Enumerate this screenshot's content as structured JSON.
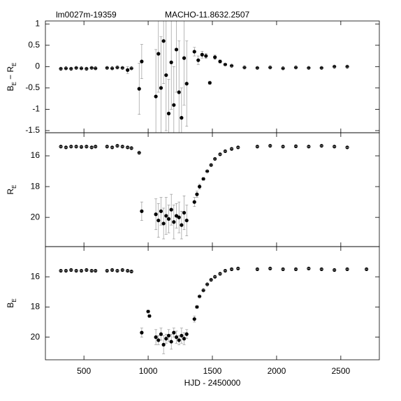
{
  "chart_data": [
    {
      "type": "scatter",
      "subtitle": "lm0027m-19359",
      "title": "MACHO-11.8632.2507",
      "ylabel": [
        "B",
        "E",
        " − ",
        "R",
        "E"
      ],
      "ylabel_sub": [
        false,
        true,
        false,
        false,
        true
      ],
      "xlim": [
        200,
        2800
      ],
      "ylim": [
        -1.55,
        1.07
      ],
      "yticks": [
        1,
        0.5,
        0,
        -0.5,
        -1,
        -1.5
      ],
      "x": [
        320,
        360,
        400,
        440,
        480,
        520,
        560,
        590,
        680,
        720,
        760,
        800,
        840,
        870,
        930,
        950,
        1060,
        1080,
        1100,
        1120,
        1140,
        1160,
        1180,
        1200,
        1220,
        1240,
        1260,
        1280,
        1300,
        1360,
        1390,
        1420,
        1450,
        1480,
        1520,
        1560,
        1600,
        1650,
        1750,
        1850,
        1950,
        2050,
        2150,
        2250,
        2350,
        2450,
        2550
      ],
      "values": [
        -0.05,
        -0.04,
        -0.05,
        -0.03,
        -0.04,
        -0.05,
        -0.03,
        -0.04,
        -0.03,
        -0.04,
        -0.02,
        -0.03,
        -0.08,
        -0.04,
        -0.52,
        0.12,
        -0.7,
        0.3,
        -0.5,
        0.6,
        -0.2,
        -1.1,
        0.1,
        -0.9,
        0.4,
        -0.6,
        -1.2,
        0.2,
        -0.4,
        0.35,
        0.15,
        0.28,
        0.25,
        -0.38,
        0.22,
        0.12,
        0.05,
        0.02,
        -0.02,
        -0.03,
        -0.02,
        -0.04,
        -0.02,
        -0.03,
        -0.03,
        0.0,
        0.0
      ],
      "errors": [
        0.02,
        0.02,
        0.02,
        0.02,
        0.02,
        0.02,
        0.02,
        0.02,
        0.02,
        0.02,
        0.02,
        0.02,
        0.08,
        0.02,
        0.6,
        0.4,
        1.1,
        0.9,
        1.2,
        1.0,
        1.3,
        0.8,
        1.1,
        0.9,
        1.0,
        1.2,
        0.7,
        1.1,
        1.0,
        0.1,
        0.1,
        0.08,
        0.06,
        0.04,
        0.05,
        0.04,
        0.03,
        0.02,
        0.02,
        0.02,
        0.02,
        0.02,
        0.02,
        0.02,
        0.02,
        0.02,
        0.02
      ]
    },
    {
      "type": "scatter",
      "ylabel": [
        "R",
        "E"
      ],
      "ylabel_sub": [
        false,
        true
      ],
      "xlim": [
        200,
        2800
      ],
      "ylim": [
        21.9,
        14.5
      ],
      "yticks": [
        16,
        18,
        20
      ],
      "x": [
        320,
        360,
        400,
        440,
        480,
        520,
        560,
        590,
        680,
        720,
        760,
        800,
        840,
        870,
        930,
        950,
        1060,
        1080,
        1100,
        1120,
        1140,
        1160,
        1180,
        1200,
        1220,
        1240,
        1260,
        1280,
        1300,
        1360,
        1380,
        1400,
        1430,
        1460,
        1490,
        1520,
        1560,
        1600,
        1650,
        1700,
        1850,
        1950,
        2050,
        2150,
        2250,
        2350,
        2450,
        2550
      ],
      "values": [
        15.4,
        15.45,
        15.4,
        15.4,
        15.42,
        15.4,
        15.45,
        15.4,
        15.4,
        15.45,
        15.35,
        15.4,
        15.45,
        15.5,
        15.8,
        19.6,
        19.8,
        20.2,
        19.6,
        20.4,
        19.9,
        20.1,
        19.5,
        20.3,
        19.9,
        20.0,
        20.5,
        19.7,
        20.2,
        19.0,
        18.5,
        18.0,
        17.5,
        17.0,
        16.6,
        16.2,
        15.9,
        15.7,
        15.55,
        15.45,
        15.4,
        15.35,
        15.4,
        15.38,
        15.4,
        15.35,
        15.4,
        15.45
      ],
      "errors": [
        0.02,
        0.02,
        0.02,
        0.02,
        0.02,
        0.02,
        0.02,
        0.02,
        0.02,
        0.02,
        0.02,
        0.02,
        0.02,
        0.02,
        0.05,
        0.6,
        1.0,
        1.1,
        0.9,
        1.0,
        1.2,
        0.9,
        1.0,
        1.1,
        0.8,
        1.0,
        0.9,
        1.1,
        1.0,
        0.3,
        0.2,
        0.15,
        0.1,
        0.08,
        0.05,
        0.04,
        0.03,
        0.02,
        0.02,
        0.02,
        0.02,
        0.02,
        0.02,
        0.02,
        0.02,
        0.02,
        0.02,
        0.02
      ]
    },
    {
      "type": "scatter",
      "ylabel": [
        "B",
        "E"
      ],
      "ylabel_sub": [
        false,
        true
      ],
      "xlabel": "HJD - 2450000",
      "xlim": [
        200,
        2800
      ],
      "xticks": [
        500,
        1000,
        1500,
        2000,
        2500
      ],
      "ylim": [
        21.5,
        14.0
      ],
      "yticks": [
        16,
        18,
        20
      ],
      "x": [
        320,
        360,
        400,
        440,
        480,
        520,
        560,
        590,
        680,
        720,
        760,
        800,
        840,
        870,
        950,
        1000,
        1010,
        1060,
        1080,
        1100,
        1120,
        1140,
        1160,
        1180,
        1200,
        1220,
        1240,
        1260,
        1280,
        1300,
        1360,
        1380,
        1400,
        1430,
        1460,
        1490,
        1520,
        1560,
        1600,
        1650,
        1700,
        1850,
        1950,
        2050,
        2150,
        2250,
        2350,
        2450,
        2550,
        2700
      ],
      "values": [
        15.6,
        15.6,
        15.55,
        15.6,
        15.6,
        15.55,
        15.6,
        15.6,
        15.6,
        15.55,
        15.6,
        15.55,
        15.6,
        15.65,
        19.7,
        18.3,
        18.6,
        20.0,
        20.2,
        19.8,
        20.5,
        20.1,
        19.9,
        20.3,
        19.7,
        20.0,
        20.2,
        19.9,
        20.1,
        19.8,
        18.8,
        18.0,
        17.3,
        16.9,
        16.5,
        16.2,
        16.0,
        15.8,
        15.6,
        15.5,
        15.45,
        15.5,
        15.45,
        15.5,
        15.5,
        15.45,
        15.5,
        15.55,
        15.5,
        15.5
      ],
      "errors": [
        0.02,
        0.02,
        0.02,
        0.02,
        0.02,
        0.02,
        0.02,
        0.02,
        0.02,
        0.02,
        0.02,
        0.02,
        0.02,
        0.02,
        0.3,
        0.1,
        0.1,
        0.5,
        0.3,
        0.4,
        0.6,
        0.3,
        0.4,
        0.5,
        0.3,
        0.4,
        0.3,
        0.5,
        0.4,
        0.3,
        0.2,
        0.1,
        0.08,
        0.06,
        0.05,
        0.04,
        0.03,
        0.02,
        0.02,
        0.02,
        0.02,
        0.02,
        0.02,
        0.02,
        0.02,
        0.02,
        0.02,
        0.02,
        0.02,
        0.02
      ]
    }
  ]
}
